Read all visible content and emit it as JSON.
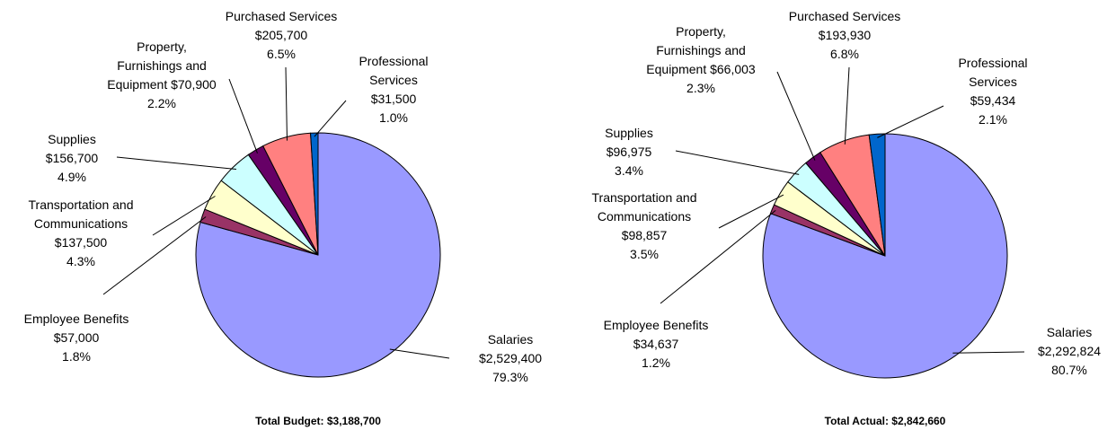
{
  "chart_data": [
    {
      "type": "pie",
      "title": "Total Budget: $3,188,700",
      "categories": [
        "Salaries",
        "Employee Benefits",
        "Transportation and Communications",
        "Supplies",
        "Property, Furnishings and Equipment",
        "Purchased Services",
        "Professional Services"
      ],
      "values": [
        2529400,
        57000,
        137500,
        156700,
        70900,
        205700,
        31500
      ],
      "value_labels": [
        "$2,529,400",
        "$57,000",
        "$137,500",
        "$156,700",
        "$70,900",
        "$205,700",
        "$31,500"
      ],
      "percents": [
        79.3,
        1.8,
        4.3,
        4.9,
        2.2,
        6.5,
        1.0
      ],
      "percent_labels": [
        "79.3%",
        "1.8%",
        "4.3%",
        "4.9%",
        "2.2%",
        "6.5%",
        "1.0%"
      ],
      "colors": [
        "#9999ff",
        "#993366",
        "#ffffcc",
        "#ccffff",
        "#660066",
        "#ff8080",
        "#0066cc"
      ]
    },
    {
      "type": "pie",
      "title": "Total Actual:  $2,842,660",
      "categories": [
        "Salaries",
        "Employee Benefits",
        "Transportation and Communications",
        "Supplies",
        "Property, Furnishings and Equipment",
        "Purchased Services",
        "Professional Services"
      ],
      "values": [
        2292824,
        34637,
        98857,
        96975,
        66003,
        193930,
        59434
      ],
      "value_labels": [
        "$2,292,824",
        "$34,637",
        "$98,857",
        "$96,975",
        "$66,003",
        "$193,930",
        "$59,434"
      ],
      "percents": [
        80.7,
        1.2,
        3.5,
        3.4,
        2.3,
        6.8,
        2.1
      ],
      "percent_labels": [
        "80.7%",
        "1.2%",
        "3.5%",
        "3.4%",
        "2.3%",
        "6.8%",
        "2.1%"
      ],
      "colors": [
        "#9999ff",
        "#993366",
        "#ffffcc",
        "#ccffff",
        "#660066",
        "#ff8080",
        "#0066cc"
      ]
    }
  ]
}
